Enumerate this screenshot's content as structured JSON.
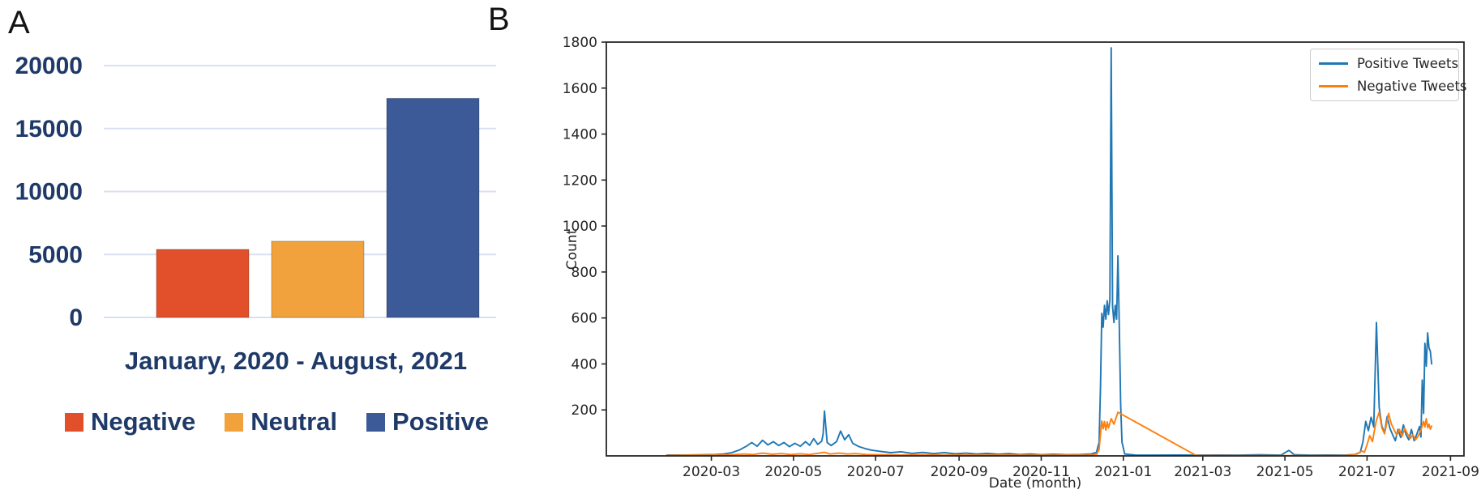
{
  "figure": {
    "panel_a_label": "A",
    "panel_b_label": "B"
  },
  "chart_data": [
    {
      "type": "bar",
      "panel": "A",
      "title": "",
      "xlabel": "January, 2020 - August, 2021",
      "categories": [
        "Negative",
        "Neutral",
        "Positive"
      ],
      "values": [
        5400,
        6050,
        17400
      ],
      "bar_colors": [
        "#e1502b",
        "#f2a23c",
        "#3d5a98"
      ],
      "ylim": [
        0,
        20000
      ],
      "yticks": [
        0,
        5000,
        10000,
        15000,
        20000
      ],
      "grid": true,
      "gridline_color": "#d9e1f1",
      "text_color": "#1f3a68",
      "legend_position": "bottom"
    },
    {
      "type": "line",
      "panel": "B",
      "xlabel": "Date (month)",
      "ylabel": "Count",
      "ylim": [
        0,
        1800
      ],
      "yticks": [
        200,
        400,
        600,
        800,
        1000,
        1200,
        1400,
        1600,
        1800
      ],
      "x_range": [
        "2019-12-14",
        "2021-09-11"
      ],
      "xticks": [
        {
          "label": "2020-03",
          "date": "2020-03-01"
        },
        {
          "label": "2020-05",
          "date": "2020-05-01"
        },
        {
          "label": "2020-07",
          "date": "2020-07-01"
        },
        {
          "label": "2020-09",
          "date": "2020-09-01"
        },
        {
          "label": "2020-11",
          "date": "2020-11-01"
        },
        {
          "label": "2021-01",
          "date": "2021-01-01"
        },
        {
          "label": "2021-03",
          "date": "2021-03-01"
        },
        {
          "label": "2021-05",
          "date": "2021-05-01"
        },
        {
          "label": "2021-07",
          "date": "2021-07-01"
        },
        {
          "label": "2021-09",
          "date": "2021-09-01"
        }
      ],
      "grid": false,
      "frame_color": "#262626",
      "legend_position": "upper right",
      "series": [
        {
          "name": "Positive Tweets",
          "color": "#1f77b4",
          "points": [
            [
              "2020-01-28",
              4
            ],
            [
              "2020-02-10",
              4
            ],
            [
              "2020-02-24",
              5
            ],
            [
              "2020-03-04",
              6
            ],
            [
              "2020-03-10",
              8
            ],
            [
              "2020-03-16",
              14
            ],
            [
              "2020-03-22",
              26
            ],
            [
              "2020-03-27",
              42
            ],
            [
              "2020-03-31",
              58
            ],
            [
              "2020-04-04",
              42
            ],
            [
              "2020-04-08",
              68
            ],
            [
              "2020-04-12",
              48
            ],
            [
              "2020-04-16",
              62
            ],
            [
              "2020-04-20",
              45
            ],
            [
              "2020-04-24",
              58
            ],
            [
              "2020-04-28",
              40
            ],
            [
              "2020-05-02",
              55
            ],
            [
              "2020-05-06",
              42
            ],
            [
              "2020-05-10",
              62
            ],
            [
              "2020-05-13",
              46
            ],
            [
              "2020-05-16",
              75
            ],
            [
              "2020-05-19",
              50
            ],
            [
              "2020-05-22",
              64
            ],
            [
              "2020-05-23",
              95
            ],
            [
              "2020-05-24",
              195
            ],
            [
              "2020-05-26",
              58
            ],
            [
              "2020-05-29",
              45
            ],
            [
              "2020-06-02",
              62
            ],
            [
              "2020-06-05",
              108
            ],
            [
              "2020-06-08",
              70
            ],
            [
              "2020-06-11",
              92
            ],
            [
              "2020-06-14",
              55
            ],
            [
              "2020-06-18",
              42
            ],
            [
              "2020-06-23",
              32
            ],
            [
              "2020-06-28",
              25
            ],
            [
              "2020-07-04",
              20
            ],
            [
              "2020-07-12",
              14
            ],
            [
              "2020-07-20",
              18
            ],
            [
              "2020-07-28",
              11
            ],
            [
              "2020-08-05",
              15
            ],
            [
              "2020-08-13",
              10
            ],
            [
              "2020-08-21",
              14
            ],
            [
              "2020-08-29",
              9
            ],
            [
              "2020-09-06",
              12
            ],
            [
              "2020-09-14",
              8
            ],
            [
              "2020-09-22",
              11
            ],
            [
              "2020-09-30",
              7
            ],
            [
              "2020-10-08",
              10
            ],
            [
              "2020-10-16",
              6
            ],
            [
              "2020-10-24",
              8
            ],
            [
              "2020-11-01",
              5
            ],
            [
              "2020-11-10",
              7
            ],
            [
              "2020-11-20",
              5
            ],
            [
              "2020-11-30",
              6
            ],
            [
              "2020-12-08",
              8
            ],
            [
              "2020-12-12",
              15
            ],
            [
              "2020-12-14",
              60
            ],
            [
              "2020-12-15",
              300
            ],
            [
              "2020-12-16",
              620
            ],
            [
              "2020-12-17",
              560
            ],
            [
              "2020-12-18",
              655
            ],
            [
              "2020-12-19",
              595
            ],
            [
              "2020-12-20",
              675
            ],
            [
              "2020-12-21",
              615
            ],
            [
              "2020-12-22",
              680
            ],
            [
              "2020-12-23",
              1775
            ],
            [
              "2020-12-24",
              650
            ],
            [
              "2020-12-25",
              580
            ],
            [
              "2020-12-26",
              655
            ],
            [
              "2020-12-27",
              595
            ],
            [
              "2020-12-28",
              870
            ],
            [
              "2020-12-29",
              560
            ],
            [
              "2020-12-30",
              220
            ],
            [
              "2020-12-31",
              60
            ],
            [
              "2021-01-02",
              8
            ],
            [
              "2021-01-10",
              4
            ],
            [
              "2021-01-25",
              3
            ],
            [
              "2021-02-10",
              4
            ],
            [
              "2021-02-25",
              3
            ],
            [
              "2021-03-12",
              4
            ],
            [
              "2021-03-28",
              3
            ],
            [
              "2021-04-12",
              5
            ],
            [
              "2021-04-28",
              3
            ],
            [
              "2021-05-04",
              24
            ],
            [
              "2021-05-08",
              5
            ],
            [
              "2021-05-20",
              3
            ],
            [
              "2021-06-02",
              4
            ],
            [
              "2021-06-14",
              3
            ],
            [
              "2021-06-22",
              6
            ],
            [
              "2021-06-26",
              16
            ],
            [
              "2021-06-28",
              62
            ],
            [
              "2021-06-30",
              150
            ],
            [
              "2021-07-02",
              110
            ],
            [
              "2021-07-04",
              168
            ],
            [
              "2021-07-06",
              126
            ],
            [
              "2021-07-08",
              580
            ],
            [
              "2021-07-10",
              210
            ],
            [
              "2021-07-12",
              130
            ],
            [
              "2021-07-14",
              100
            ],
            [
              "2021-07-16",
              172
            ],
            [
              "2021-07-18",
              120
            ],
            [
              "2021-07-20",
              92
            ],
            [
              "2021-07-22",
              66
            ],
            [
              "2021-07-24",
              115
            ],
            [
              "2021-07-26",
              80
            ],
            [
              "2021-07-28",
              135
            ],
            [
              "2021-07-30",
              92
            ],
            [
              "2021-08-01",
              70
            ],
            [
              "2021-08-03",
              115
            ],
            [
              "2021-08-05",
              66
            ],
            [
              "2021-08-07",
              95
            ],
            [
              "2021-08-09",
              128
            ],
            [
              "2021-08-10",
              82
            ],
            [
              "2021-08-11",
              330
            ],
            [
              "2021-08-12",
              185
            ],
            [
              "2021-08-13",
              490
            ],
            [
              "2021-08-14",
              390
            ],
            [
              "2021-08-15",
              535
            ],
            [
              "2021-08-16",
              470
            ],
            [
              "2021-08-17",
              455
            ],
            [
              "2021-08-18",
              400
            ]
          ]
        },
        {
          "name": "Negative Tweets",
          "color": "#ff7f0e",
          "points": [
            [
              "2020-01-28",
              2
            ],
            [
              "2020-02-15",
              3
            ],
            [
              "2020-03-01",
              3
            ],
            [
              "2020-03-15",
              5
            ],
            [
              "2020-03-25",
              8
            ],
            [
              "2020-04-01",
              6
            ],
            [
              "2020-04-08",
              12
            ],
            [
              "2020-04-15",
              7
            ],
            [
              "2020-04-22",
              10
            ],
            [
              "2020-04-29",
              6
            ],
            [
              "2020-05-06",
              9
            ],
            [
              "2020-05-13",
              6
            ],
            [
              "2020-05-20",
              12
            ],
            [
              "2020-05-24",
              16
            ],
            [
              "2020-05-28",
              8
            ],
            [
              "2020-06-04",
              12
            ],
            [
              "2020-06-10",
              8
            ],
            [
              "2020-06-16",
              10
            ],
            [
              "2020-06-24",
              6
            ],
            [
              "2020-07-04",
              5
            ],
            [
              "2020-07-20",
              4
            ],
            [
              "2020-08-05",
              5
            ],
            [
              "2020-08-20",
              3
            ],
            [
              "2020-09-05",
              4
            ],
            [
              "2020-09-20",
              3
            ],
            [
              "2020-10-05",
              4
            ],
            [
              "2020-10-20",
              3
            ],
            [
              "2020-11-05",
              3
            ],
            [
              "2020-11-20",
              3
            ],
            [
              "2020-12-05",
              3
            ],
            [
              "2020-12-12",
              6
            ],
            [
              "2020-12-14",
              28
            ],
            [
              "2020-12-15",
              95
            ],
            [
              "2020-12-16",
              152
            ],
            [
              "2020-12-17",
              118
            ],
            [
              "2020-12-18",
              150
            ],
            [
              "2020-12-19",
              112
            ],
            [
              "2020-12-20",
              148
            ],
            [
              "2020-12-21",
              122
            ],
            [
              "2020-12-23",
              162
            ],
            [
              "2020-12-25",
              138
            ],
            [
              "2020-12-28",
              190
            ],
            [
              "2021-02-24",
              2
            ],
            [
              "2021-03-20",
              1
            ],
            [
              "2021-04-20",
              1
            ],
            [
              "2021-05-20",
              1
            ],
            [
              "2021-06-12",
              1
            ],
            [
              "2021-06-20",
              3
            ],
            [
              "2021-06-24",
              9
            ],
            [
              "2021-06-27",
              22
            ],
            [
              "2021-06-29",
              16
            ],
            [
              "2021-07-01",
              48
            ],
            [
              "2021-07-03",
              88
            ],
            [
              "2021-07-05",
              62
            ],
            [
              "2021-07-07",
              128
            ],
            [
              "2021-07-08",
              155
            ],
            [
              "2021-07-10",
              190
            ],
            [
              "2021-07-12",
              122
            ],
            [
              "2021-07-14",
              96
            ],
            [
              "2021-07-16",
              152
            ],
            [
              "2021-07-17",
              185
            ],
            [
              "2021-07-19",
              140
            ],
            [
              "2021-07-21",
              115
            ],
            [
              "2021-07-23",
              90
            ],
            [
              "2021-07-25",
              116
            ],
            [
              "2021-07-27",
              85
            ],
            [
              "2021-07-29",
              120
            ],
            [
              "2021-07-31",
              96
            ],
            [
              "2021-08-02",
              76
            ],
            [
              "2021-08-04",
              92
            ],
            [
              "2021-08-06",
              70
            ],
            [
              "2021-08-08",
              86
            ],
            [
              "2021-08-10",
              112
            ],
            [
              "2021-08-12",
              150
            ],
            [
              "2021-08-13",
              126
            ],
            [
              "2021-08-14",
              162
            ],
            [
              "2021-08-15",
              122
            ],
            [
              "2021-08-16",
              138
            ],
            [
              "2021-08-17",
              116
            ],
            [
              "2021-08-18",
              130
            ]
          ]
        }
      ]
    }
  ]
}
